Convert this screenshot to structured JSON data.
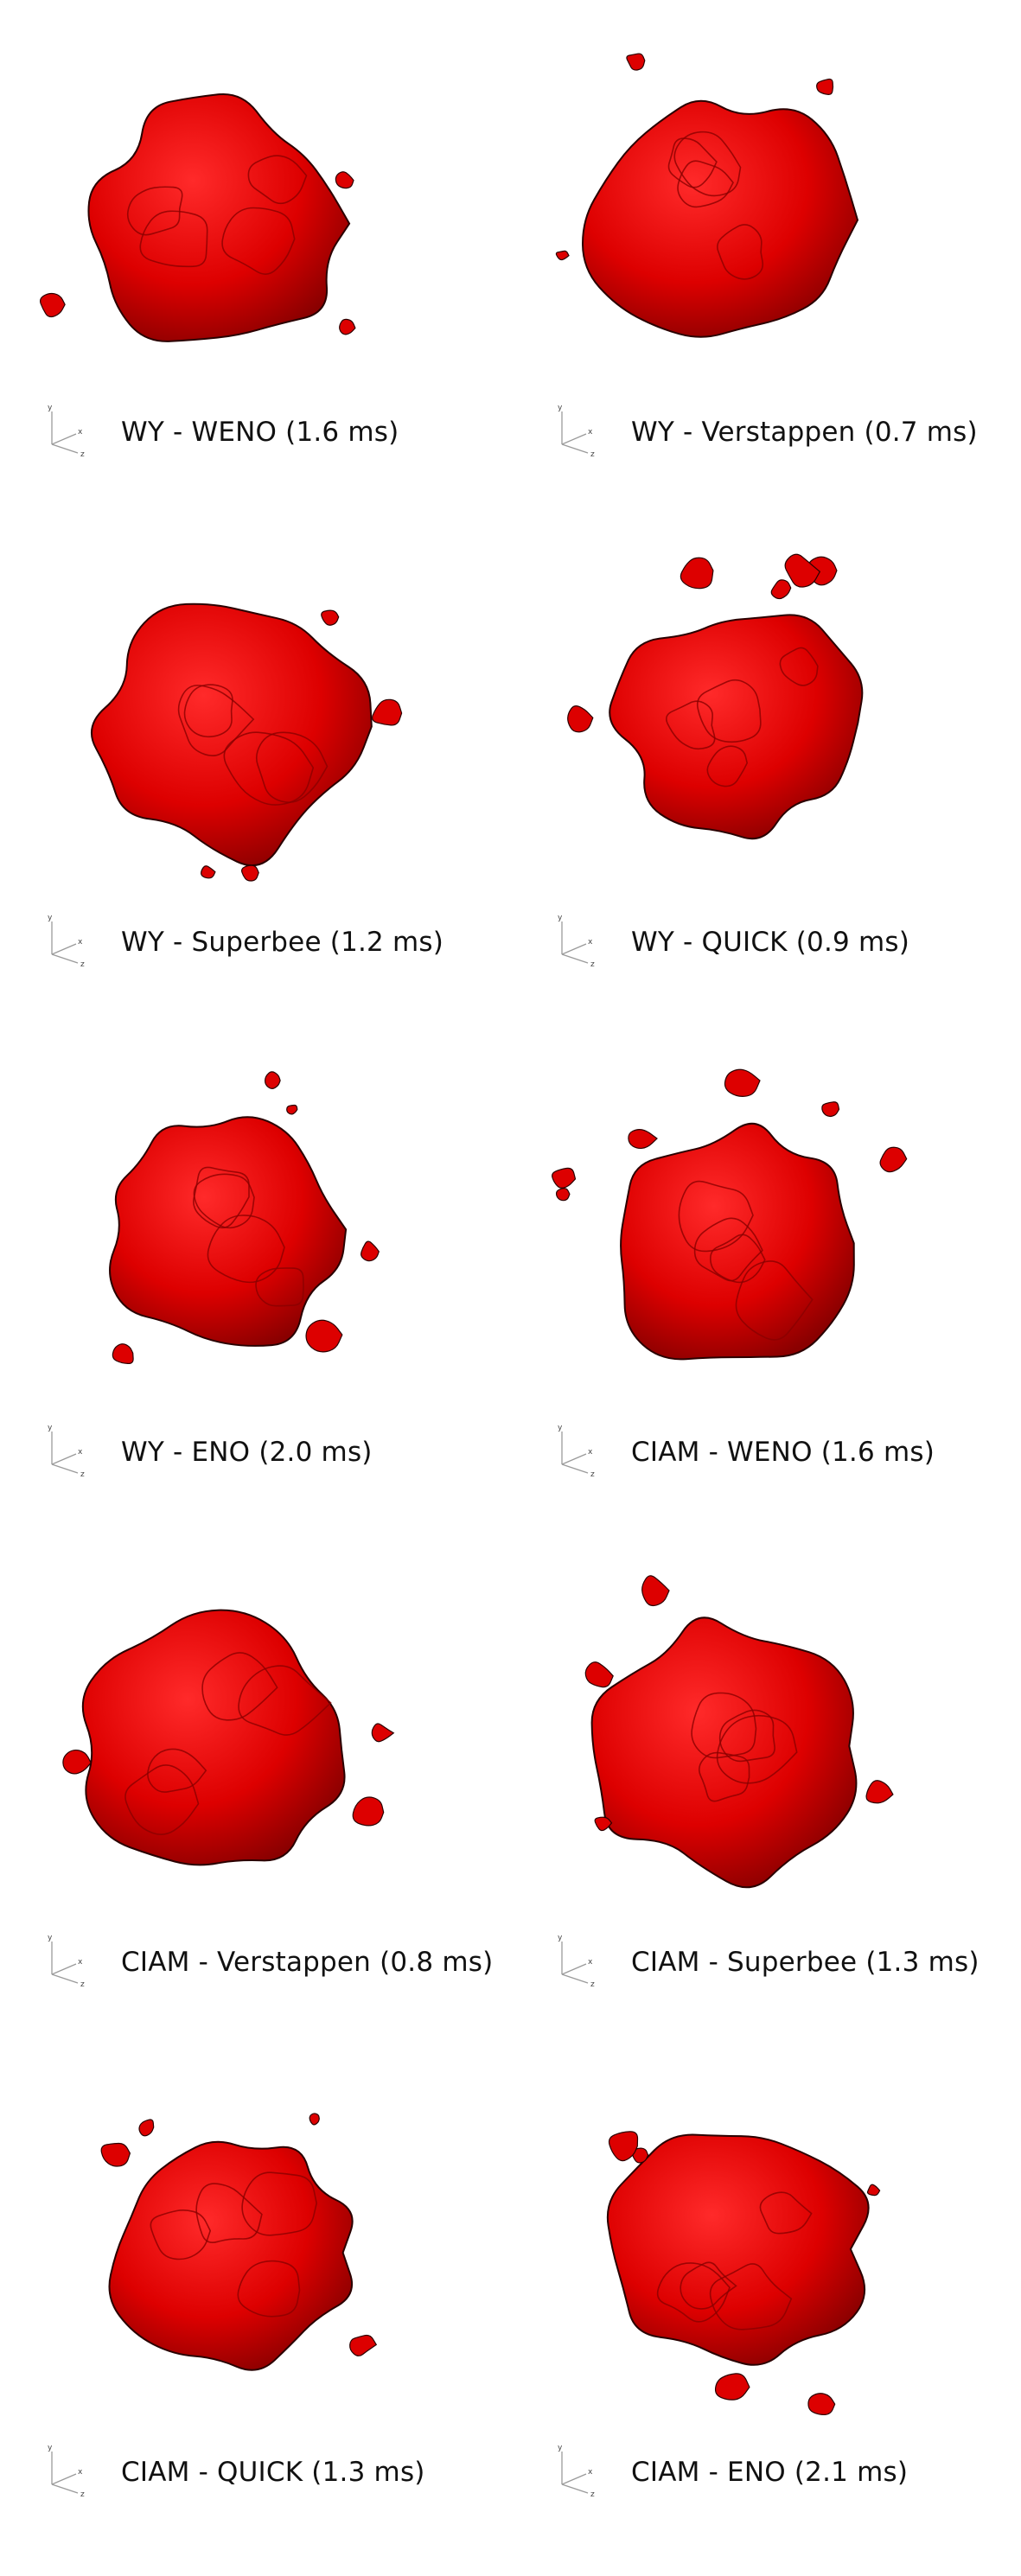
{
  "colors": {
    "background": "#ffffff",
    "droplet_fill": "#dd0000",
    "droplet_shade": "#8a0000",
    "droplet_highlight": "#ff2a2a",
    "droplet_outline": "#2a0000",
    "caption_text": "#111111",
    "axis_lines": "#9a9a9a"
  },
  "axis_labels": {
    "y": "y",
    "x": "x",
    "z": "z"
  },
  "panels": [
    {
      "caption": "WY - WENO (1.6 ms)"
    },
    {
      "caption": "WY - Verstappen (0.7 ms)"
    },
    {
      "caption": "WY - Superbee (1.2 ms)"
    },
    {
      "caption": "WY - QUICK (0.9 ms)"
    },
    {
      "caption": "WY - ENO (2.0 ms)"
    },
    {
      "caption": "CIAM - WENO (1.6 ms)"
    },
    {
      "caption": "CIAM - Verstappen (0.8 ms)"
    },
    {
      "caption": "CIAM - Superbee (1.3 ms)"
    },
    {
      "caption": "CIAM - QUICK (1.3 ms)"
    },
    {
      "caption": "CIAM - ENO (2.1 ms)"
    }
  ]
}
